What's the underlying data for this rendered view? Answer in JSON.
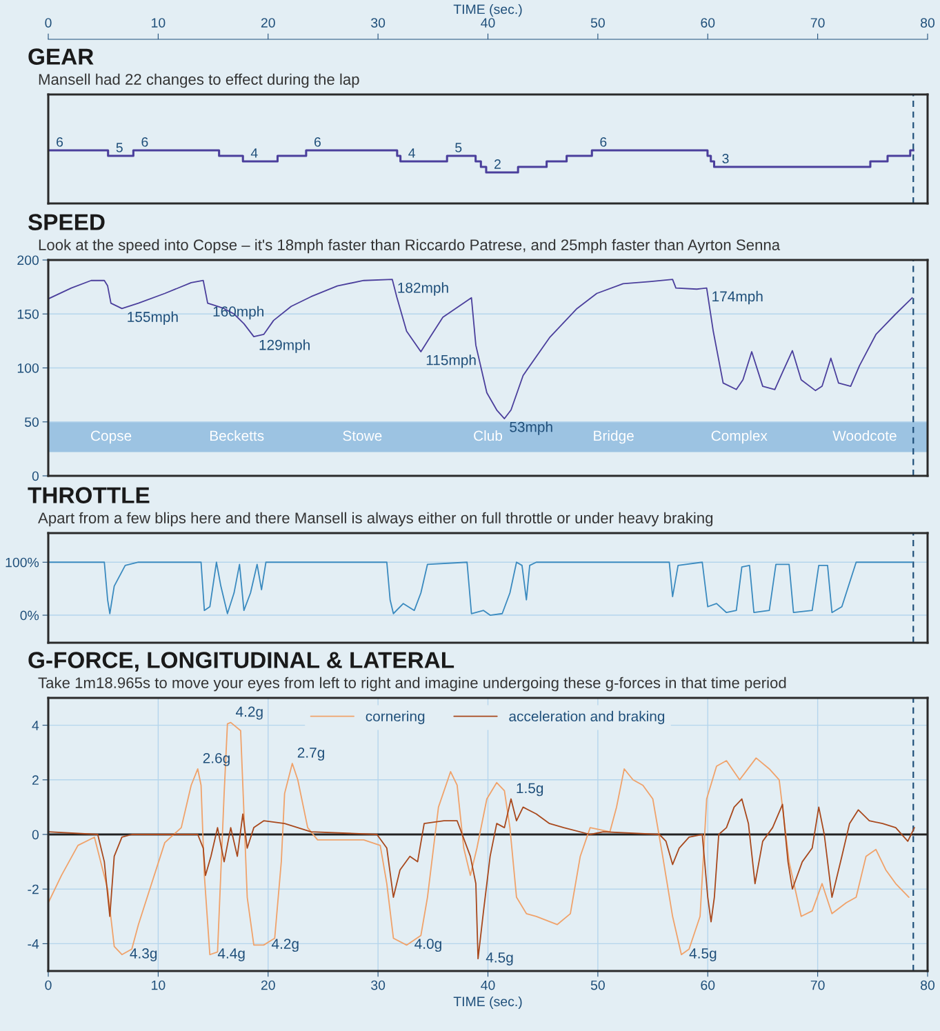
{
  "chart_data": [
    {
      "type": "step",
      "title": "GEAR",
      "subtitle": "Mansell had 22 changes to effect during the lap",
      "x": [
        0,
        5.44,
        7.74,
        15.54,
        17.71,
        20.86,
        23.46,
        31.74,
        32.04,
        36.28,
        38.88,
        39.36,
        39.84,
        42.74,
        45.34,
        47.16,
        49.46,
        59.98,
        60.28,
        60.58,
        74.79,
        76.36,
        78.42,
        78.7
      ],
      "values": [
        6,
        5,
        6,
        5,
        4,
        5,
        6,
        5,
        4,
        5,
        4,
        3,
        2,
        3,
        4,
        5,
        6,
        5,
        4,
        3,
        4,
        5,
        6,
        6
      ],
      "value_labels": [
        "6",
        "5",
        "6",
        null,
        "4",
        null,
        "6",
        null,
        "4",
        "5",
        null,
        null,
        "2",
        null,
        null,
        null,
        "6",
        null,
        null,
        "3",
        null,
        null,
        null,
        null
      ],
      "color": "#4b3f9c",
      "xlim": [
        0,
        80
      ],
      "ylim": [
        -3.6,
        16.1
      ],
      "x2lim": [
        0,
        80
      ],
      "x2ticks": [
        0,
        10,
        20,
        30,
        40,
        50,
        60,
        70,
        80
      ],
      "x2label": "TIME (sec.)",
      "tick_labels": false,
      "grid": "x",
      "ref_lines": [
        {
          "axis": "x",
          "value": 78.7,
          "line_style": "dashed",
          "color": "#1f4f7a"
        }
      ]
    },
    {
      "type": "line",
      "title": "SPEED",
      "subtitle": "Look at the speed into Copse – it's 18mph faster than Riccardo Patrese, and 25mph faster than Ayrton Senna",
      "x": [
        0,
        2.1,
        3.9,
        5.1,
        5.4,
        5.7,
        6.7,
        8.2,
        10.6,
        13.0,
        14.1,
        14.5,
        15.1,
        16.0,
        16.9,
        17.8,
        18.7,
        19.6,
        20.5,
        22.1,
        23.9,
        26.3,
        28.7,
        31.3,
        31.7,
        32.6,
        33.9,
        34.7,
        35.9,
        38.5,
        38.9,
        39.9,
        40.8,
        41.5,
        42.1,
        43.2,
        45.6,
        48.1,
        49.9,
        52.3,
        54.7,
        56.8,
        57.1,
        59.0,
        59.9,
        60.5,
        61.4,
        62.6,
        63.2,
        64.0,
        65.0,
        66.1,
        66.8,
        67.7,
        68.5,
        69.8,
        70.4,
        71.2,
        71.9,
        73.0,
        73.8,
        75.3,
        77.1,
        78.6
      ],
      "values": [
        164,
        174,
        181,
        181,
        176,
        160,
        155,
        160,
        169,
        179,
        181,
        160,
        158,
        155,
        150,
        141,
        129,
        131,
        144,
        157,
        166,
        176,
        181,
        182,
        166,
        134,
        115,
        128,
        147,
        165,
        121,
        77,
        61,
        53,
        61,
        93,
        128,
        155,
        169,
        178,
        180,
        182,
        174,
        173,
        174,
        134,
        86,
        80,
        89,
        115,
        83,
        80,
        96,
        116,
        89,
        79,
        83,
        109,
        86,
        83,
        102,
        131,
        150,
        165
      ],
      "color": "#4b3f9c",
      "xlim": [
        0,
        80
      ],
      "ylim": [
        0,
        200
      ],
      "yticks": [
        0,
        50,
        100,
        150,
        200
      ],
      "tick_labels": "y",
      "grid": true,
      "bands": [
        {
          "axis": "y",
          "from": 22,
          "to": 50,
          "color": "#9cc3e2"
        }
      ],
      "ref_lines": [
        {
          "axis": "x",
          "value": 78.7,
          "line_style": "dashed",
          "color": "#1f4f7a"
        }
      ],
      "annotations": [
        {
          "text": "155mph",
          "x": 6.7,
          "y": 155
        },
        {
          "text": "160mph",
          "x": 14.5,
          "y": 160
        },
        {
          "text": "129mph",
          "x": 18.7,
          "y": 129
        },
        {
          "text": "182mph",
          "x": 31.3,
          "y": 182
        },
        {
          "text": "115mph",
          "x": 33.9,
          "y": 115
        },
        {
          "text": "53mph",
          "x": 41.5,
          "y": 53
        },
        {
          "text": "174mph",
          "x": 59.9,
          "y": 174
        },
        "Copse",
        "Becketts",
        "Stowe",
        "Club",
        "Bridge",
        "Complex",
        "Woodcote"
      ]
    },
    {
      "type": "line",
      "title": "THROTTLE",
      "subtitle": "Apart from a few blips here and there Mansell is always either on full throttle or under heavy braking",
      "x": [
        0,
        5.1,
        5.4,
        5.6,
        6.0,
        7.0,
        8.2,
        13.9,
        14.2,
        14.7,
        15.3,
        15.7,
        16.3,
        16.9,
        17.4,
        17.8,
        18.4,
        19.0,
        19.4,
        19.8,
        30.8,
        31.1,
        31.4,
        32.3,
        33.3,
        33.9,
        34.5,
        38.1,
        38.5,
        39.6,
        40.2,
        41.3,
        42.0,
        42.6,
        43.1,
        43.5,
        43.8,
        44.4,
        56.5,
        56.8,
        57.3,
        59.5,
        60.0,
        60.8,
        61.7,
        62.6,
        63.1,
        63.8,
        64.2,
        65.6,
        66.2,
        67.4,
        67.8,
        69.5,
        70.1,
        70.9,
        71.3,
        72.2,
        73.5,
        78.6
      ],
      "values": [
        100,
        100,
        29,
        3,
        55,
        94,
        100,
        100,
        9,
        16,
        100,
        55,
        3,
        42,
        96,
        9,
        42,
        96,
        48,
        100,
        100,
        29,
        3,
        22,
        9,
        42,
        96,
        100,
        3,
        9,
        0,
        3,
        42,
        100,
        94,
        29,
        94,
        100,
        100,
        35,
        94,
        100,
        16,
        22,
        5,
        9,
        91,
        94,
        5,
        9,
        96,
        96,
        5,
        9,
        94,
        94,
        5,
        16,
        100,
        100
      ],
      "color": "#3a8abf",
      "xlim": [
        0,
        80
      ],
      "ylim": [
        -52,
        155
      ],
      "yticks": [
        {
          "value": 0,
          "label": "0%"
        },
        {
          "value": 100,
          "label": "100%"
        }
      ],
      "tick_labels": "y",
      "grid": true,
      "ref_lines": [
        {
          "axis": "x",
          "value": 78.7,
          "line_style": "dashed",
          "color": "#1f4f7a"
        }
      ]
    },
    {
      "type": "line",
      "title": "G-FORCE, LONGITUDINAL & LATERAL",
      "subtitle": "Take 1m18.965s to move your eyes from left to right and imagine undergoing these g-forces in that time period",
      "series": [
        {
          "name": "cornering",
          "color": "#f0a26a",
          "x": [
            0,
            1.2,
            2.7,
            4.2,
            5.4,
            6.0,
            6.7,
            7.6,
            8.2,
            9.4,
            10.6,
            12.1,
            13.0,
            13.6,
            13.9,
            14.2,
            14.7,
            15.4,
            16.0,
            16.3,
            16.6,
            17.5,
            17.8,
            18.1,
            18.7,
            19.6,
            20.6,
            21.2,
            21.5,
            22.2,
            22.7,
            23.6,
            24.5,
            28.7,
            30.2,
            30.8,
            31.4,
            32.6,
            33.9,
            34.5,
            35.5,
            36.6,
            37.2,
            37.8,
            38.4,
            39.0,
            39.9,
            40.8,
            41.5,
            42.0,
            42.6,
            43.5,
            44.4,
            46.3,
            47.5,
            48.4,
            49.3,
            51.1,
            51.7,
            52.4,
            53.2,
            54.1,
            55.0,
            55.9,
            56.8,
            57.6,
            58.3,
            59.3,
            59.9,
            60.8,
            61.7,
            62.9,
            64.4,
            65.6,
            66.5,
            67.4,
            68.5,
            69.5,
            70.4,
            71.3,
            72.6,
            73.5,
            74.4,
            75.3,
            76.2,
            77.1,
            78.3
          ],
          "values": [
            -2.5,
            -1.5,
            -0.4,
            -0.1,
            -2.0,
            -4.1,
            -4.4,
            -4.2,
            -3.3,
            -1.8,
            -0.3,
            0.25,
            1.8,
            2.4,
            1.8,
            -1.5,
            -4.4,
            -4.3,
            1.5,
            4.05,
            4.1,
            3.8,
            0.8,
            -2.3,
            -4.05,
            -4.05,
            -3.8,
            -1.0,
            1.5,
            2.6,
            2.0,
            0.25,
            -0.2,
            -0.2,
            -0.4,
            -1.8,
            -3.8,
            -4.05,
            -3.7,
            -2.3,
            1.0,
            2.3,
            1.8,
            -0.5,
            -1.5,
            -0.5,
            1.3,
            1.9,
            1.6,
            0.25,
            -2.3,
            -2.9,
            -3.0,
            -3.3,
            -2.9,
            -0.8,
            0.25,
            0.1,
            1.0,
            2.4,
            2.0,
            1.8,
            1.3,
            -0.8,
            -3.0,
            -4.4,
            -4.2,
            -3.0,
            1.3,
            2.5,
            2.7,
            2.0,
            2.8,
            2.4,
            2.0,
            -1.0,
            -3.0,
            -2.8,
            -1.8,
            -2.9,
            -2.5,
            -2.3,
            -0.8,
            -0.55,
            -1.3,
            -1.8,
            -2.3
          ]
        },
        {
          "name": "acceleration and braking",
          "color": "#a8481c",
          "x": [
            0,
            4.5,
            5.1,
            5.6,
            6.0,
            6.7,
            7.6,
            13.6,
            14.1,
            14.3,
            14.8,
            15.4,
            16.0,
            16.6,
            17.2,
            17.7,
            18.1,
            18.7,
            19.6,
            21.5,
            23.9,
            29.9,
            30.8,
            31.4,
            32.0,
            32.9,
            33.6,
            34.2,
            36.0,
            37.2,
            38.4,
            38.9,
            39.1,
            39.6,
            40.2,
            40.8,
            41.5,
            42.1,
            42.6,
            43.2,
            44.4,
            45.6,
            46.9,
            49.3,
            50.5,
            55.6,
            56.2,
            56.8,
            57.4,
            58.3,
            59.5,
            60.0,
            60.3,
            60.6,
            61.0,
            61.7,
            62.4,
            63.1,
            63.7,
            64.3,
            65.0,
            65.9,
            66.8,
            67.3,
            67.7,
            68.6,
            69.5,
            70.1,
            70.6,
            71.3,
            72.2,
            72.9,
            73.7,
            74.7,
            75.9,
            77.1,
            78.2,
            78.8
          ],
          "values": [
            0.1,
            0,
            -1.0,
            -3.0,
            -0.8,
            -0.1,
            0,
            0,
            -0.5,
            -1.5,
            -0.8,
            0.25,
            -1.0,
            0.25,
            -0.8,
            0.75,
            -0.5,
            0.25,
            0.5,
            0.4,
            0.1,
            0,
            -0.5,
            -2.3,
            -1.3,
            -0.8,
            -1.0,
            0.4,
            0.5,
            0.5,
            -0.8,
            -1.8,
            -4.55,
            -2.8,
            -0.8,
            0.4,
            0.25,
            1.3,
            0.5,
            1.0,
            0.75,
            0.4,
            0.25,
            0,
            0.1,
            0,
            -0.25,
            -1.1,
            -0.5,
            -0.1,
            0,
            -2.3,
            -3.2,
            -2.3,
            0,
            0.25,
            1.0,
            1.3,
            0.4,
            -1.8,
            -0.25,
            0.25,
            1.1,
            -1.0,
            -2.0,
            -1.0,
            -0.5,
            1.0,
            0,
            -2.3,
            -0.8,
            0.4,
            0.9,
            0.5,
            0.4,
            0.25,
            -0.25,
            0.25
          ]
        }
      ],
      "xlim": [
        0,
        80
      ],
      "xticks": [
        0,
        10,
        20,
        30,
        40,
        50,
        60,
        70,
        80
      ],
      "xlabel": "TIME (sec.)",
      "ylim": [
        -5,
        5
      ],
      "yticks": [
        -4,
        -2,
        0,
        2,
        4
      ],
      "grid": true,
      "legend": "top",
      "ref_lines": [
        {
          "axis": "y",
          "value": 0,
          "line_style": "solid",
          "color": "#222222"
        },
        {
          "axis": "x",
          "value": 78.7,
          "line_style": "dashed",
          "color": "#1f4f7a"
        }
      ],
      "annotations": [
        {
          "text": "4.3g",
          "x": 6.7,
          "y": -4.4
        },
        {
          "text": "2.6g",
          "x": 13.6,
          "y": 2.4
        },
        {
          "text": "4.4g",
          "x": 14.7,
          "y": -4.4
        },
        {
          "text": "4.2g",
          "x": 16.6,
          "y": 4.1
        },
        {
          "text": "4.2g",
          "x": 19.6,
          "y": -4.05
        },
        {
          "text": "2.7g",
          "x": 22.2,
          "y": 2.6
        },
        {
          "text": "4.0g",
          "x": 32.6,
          "y": -4.05
        },
        {
          "text": "4.5g",
          "x": 39.1,
          "y": -4.55
        },
        {
          "text": "1.5g",
          "x": 42.1,
          "y": 1.3
        },
        {
          "text": "4.5g",
          "x": 57.6,
          "y": -4.4
        }
      ]
    }
  ]
}
